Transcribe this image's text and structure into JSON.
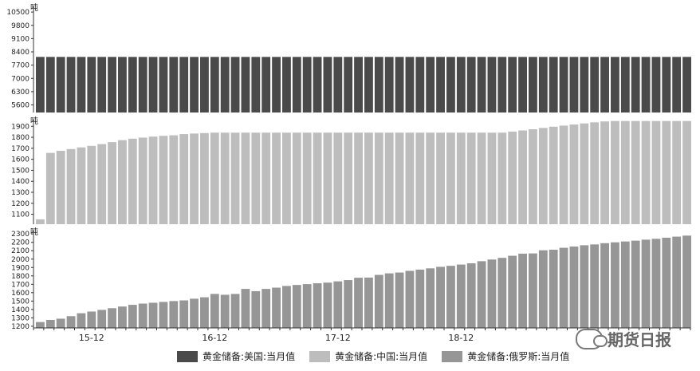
{
  "chart_data": [
    {
      "type": "bar",
      "series_name": "黄金储备:美国:当月值",
      "unit": "吨",
      "ylim": [
        5200,
        10800
      ],
      "yticks": [
        5600,
        6300,
        7000,
        7700,
        8400,
        9100,
        9800,
        10500
      ],
      "count": 64,
      "values": [
        8133.5,
        8133.5,
        8133.5,
        8133.5,
        8133.5,
        8133.5,
        8133.5,
        8133.5,
        8133.5,
        8133.5,
        8133.5,
        8133.5,
        8133.5,
        8133.5,
        8133.5,
        8133.5,
        8133.5,
        8133.5,
        8133.5,
        8133.5,
        8133.5,
        8133.5,
        8133.5,
        8133.5,
        8133.5,
        8133.5,
        8133.5,
        8133.5,
        8133.5,
        8133.5,
        8133.5,
        8133.5,
        8133.5,
        8133.5,
        8133.5,
        8133.5,
        8133.5,
        8133.5,
        8133.5,
        8133.5,
        8133.5,
        8133.5,
        8133.5,
        8133.5,
        8133.5,
        8133.5,
        8133.5,
        8133.5,
        8133.5,
        8133.5,
        8133.5,
        8133.5,
        8133.5,
        8133.5,
        8133.5,
        8133.5,
        8133.5,
        8133.5,
        8133.5,
        8133.5,
        8133.5,
        8133.5,
        8133.5,
        8133.5
      ],
      "color": "#4a4a4a"
    },
    {
      "type": "bar",
      "series_name": "黄金储备:中国:当月值",
      "unit": "吨",
      "ylim": [
        1010,
        1960
      ],
      "yticks": [
        1100,
        1200,
        1300,
        1400,
        1500,
        1600,
        1700,
        1800,
        1900
      ],
      "count": 64,
      "values": [
        1054,
        1658,
        1677,
        1693,
        1708,
        1722,
        1738,
        1756,
        1774,
        1787,
        1797,
        1806,
        1813,
        1818,
        1829,
        1834,
        1838,
        1842,
        1842,
        1842,
        1842,
        1842,
        1842,
        1842,
        1842,
        1842,
        1842,
        1842,
        1842,
        1842,
        1842,
        1842,
        1842,
        1842,
        1842,
        1842,
        1842,
        1842,
        1842,
        1842,
        1842,
        1842,
        1842,
        1842,
        1842,
        1842,
        1852,
        1862,
        1873,
        1885,
        1896,
        1906,
        1916,
        1926,
        1936,
        1944,
        1948,
        1948,
        1948,
        1948,
        1948,
        1948,
        1948,
        1948
      ],
      "color": "#bdbdbd"
    },
    {
      "type": "bar",
      "series_name": "黄金储备:俄罗斯:当月值",
      "unit": "吨",
      "ylim": [
        1180,
        2340
      ],
      "yticks": [
        1200,
        1300,
        1400,
        1500,
        1600,
        1700,
        1800,
        1900,
        2000,
        2100,
        2200,
        2300
      ],
      "count": 64,
      "values": [
        1250,
        1275,
        1290,
        1320,
        1355,
        1375,
        1395,
        1415,
        1435,
        1455,
        1470,
        1480,
        1490,
        1500,
        1508,
        1528,
        1545,
        1585,
        1575,
        1585,
        1645,
        1618,
        1645,
        1660,
        1680,
        1692,
        1702,
        1712,
        1720,
        1735,
        1750,
        1778,
        1780,
        1812,
        1830,
        1840,
        1860,
        1875,
        1890,
        1908,
        1920,
        1935,
        1950,
        1975,
        1995,
        2015,
        2040,
        2065,
        2068,
        2105,
        2112,
        2135,
        2150,
        2165,
        2175,
        2190,
        2200,
        2210,
        2220,
        2232,
        2242,
        2255,
        2268,
        2280
      ],
      "color": "#969696"
    }
  ],
  "x_axis": {
    "labels": [
      {
        "text": "15-12",
        "index": 5
      },
      {
        "text": "16-12",
        "index": 17
      },
      {
        "text": "17-12",
        "index": 29
      },
      {
        "text": "18-12",
        "index": 41
      }
    ]
  },
  "legend": [
    {
      "label": "黄金储备:美国:当月值",
      "color": "#4a4a4a"
    },
    {
      "label": "黄金储备:中国:当月值",
      "color": "#bdbdbd"
    },
    {
      "label": "黄金储备:俄罗斯:当月值",
      "color": "#969696"
    }
  ],
  "watermark": {
    "text": "期货日报"
  }
}
